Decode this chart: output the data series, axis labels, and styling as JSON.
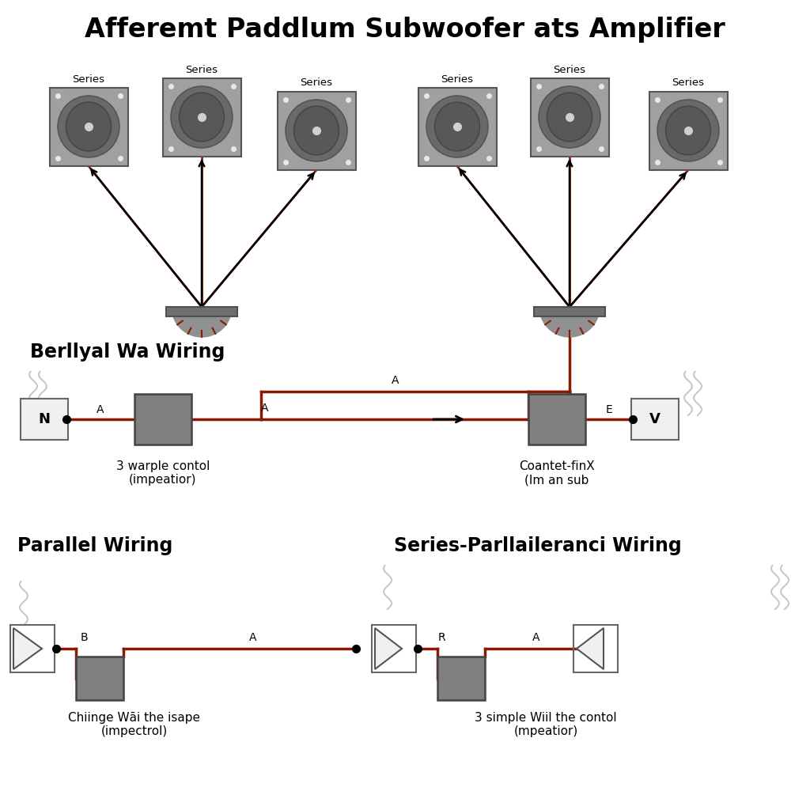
{
  "title": "Afferemt Paddlum Subwoofer ats Amplifier",
  "title_fontsize": 24,
  "wire_color": "#8B1A00",
  "box_color": "#808080",
  "bg_color": "#FFFFFF",
  "text_color": "#000000",
  "section1_label": "Berllyal Wa Wiring",
  "section2_label": "Parallel Wiring",
  "section3_label": "Series-Parllaileranci Wiring",
  "label_fontsize": 17,
  "sub_label_fontsize": 11,
  "series_labels": [
    "Series",
    "Series",
    "Series",
    "Series",
    "Series",
    "Series"
  ],
  "mid_section_labels_left": "3 warple contol\n(impeatior)",
  "mid_section_labels_right": "Coantet-finX\n(Im an sub",
  "bottom_labels_left": "Chiinge Wāi the isape\n(impectrol)",
  "bottom_labels_right": "3 simple Wiil the contol\n(mpeatior)"
}
